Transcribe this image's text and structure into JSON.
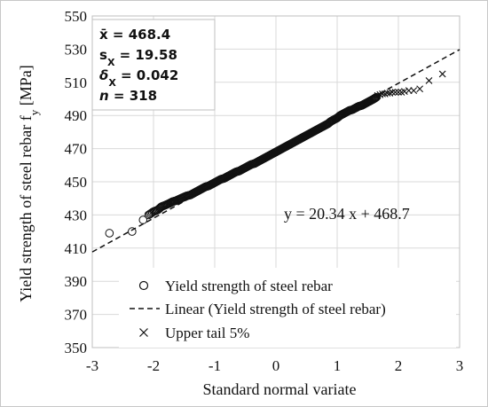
{
  "chart_data": {
    "type": "scatter",
    "xlabel": "Standard normal variate",
    "ylabel": "Yield strength of steel rebar f",
    "ylabel_sub": "y",
    "ylabel_unit": " [MPa]",
    "xlim": [
      -3,
      3
    ],
    "ylim": [
      350,
      550
    ],
    "xticks": [
      "-3",
      "-2",
      "-1",
      "0",
      "1",
      "2",
      "3"
    ],
    "yticks": [
      "350",
      "370",
      "390",
      "410",
      "430",
      "450",
      "470",
      "490",
      "510",
      "530",
      "550"
    ],
    "grid": true,
    "stats": [
      {
        "sym": "x̄",
        "sub": "",
        "eq": " = ",
        "val": "468.4"
      },
      {
        "sym": "s",
        "sub": "X",
        "eq": " = ",
        "val": "19.58"
      },
      {
        "sym": "δ",
        "sub": "X",
        "eq": " = ",
        "val": "0.042"
      },
      {
        "sym": "n",
        "sub": "",
        "eq": " = ",
        "val": "318"
      }
    ],
    "trendline": {
      "slope": 20.34,
      "intercept": 468.7,
      "label": "y = 20.34 x + 468.7"
    },
    "legend": [
      {
        "name": "Yield strength of steel rebar",
        "marker": "circle"
      },
      {
        "name": "Linear (Yield strength of steel rebar)",
        "marker": "dashed-line"
      },
      {
        "name": "Upper tail 5%",
        "marker": "x"
      }
    ],
    "series": [
      {
        "name": "Yield strength of steel rebar",
        "marker": "circle",
        "note": "318 points total; main body drawn as dense band following the fit",
        "x": [
          -2.72,
          -2.35,
          -2.17,
          -2.08,
          -2.0,
          -1.93,
          -1.87,
          -1.8,
          -1.74,
          -1.69,
          -1.64,
          -1.58,
          -1.52,
          -1.46,
          -1.4,
          -1.35,
          -1.3,
          -1.25,
          -1.2,
          -1.15,
          -1.1,
          -1.05,
          -1.0,
          -0.95,
          -0.9,
          -0.85,
          -0.8,
          -0.75,
          -0.7,
          -0.65,
          -0.6,
          -0.55,
          -0.5,
          -0.45,
          -0.4,
          -0.35,
          -0.3,
          -0.25,
          -0.2,
          -0.15,
          -0.1,
          -0.05,
          0.0,
          0.05,
          0.1,
          0.15,
          0.2,
          0.25,
          0.3,
          0.35,
          0.4,
          0.45,
          0.5,
          0.55,
          0.6,
          0.65,
          0.7,
          0.75,
          0.8,
          0.85,
          0.9,
          0.95,
          1.0,
          1.05,
          1.1,
          1.15,
          1.2,
          1.25,
          1.3,
          1.35,
          1.4,
          1.45,
          1.5,
          1.55,
          1.6,
          1.64
        ],
        "y": [
          419,
          420,
          427,
          430,
          432,
          433,
          435,
          436,
          437,
          438,
          438.5,
          439.5,
          440.5,
          441.5,
          442,
          443,
          444,
          445,
          446,
          447,
          447.5,
          448.5,
          449.5,
          450.5,
          451.5,
          452,
          453,
          454,
          455,
          456,
          456.5,
          457.5,
          458.5,
          459.5,
          460.5,
          461,
          462,
          463,
          464,
          465,
          466,
          467,
          468,
          469,
          470,
          471,
          472,
          473,
          474,
          475,
          476,
          477,
          478,
          479,
          480,
          481,
          482,
          483,
          484,
          485,
          486.5,
          487.5,
          488.5,
          490,
          491,
          492,
          493,
          493.5,
          494.5,
          495.5,
          496,
          497,
          498,
          499,
          500,
          501
        ]
      },
      {
        "name": "Upper tail 5%",
        "marker": "x",
        "x": [
          1.66,
          1.7,
          1.74,
          1.78,
          1.82,
          1.86,
          1.9,
          1.95,
          2.0,
          2.05,
          2.1,
          2.17,
          2.25,
          2.35,
          2.5,
          2.72
        ],
        "y": [
          502,
          502.5,
          503,
          503,
          503.5,
          503.5,
          504,
          504,
          504,
          504,
          504.5,
          505,
          505,
          506,
          511,
          515
        ]
      }
    ]
  }
}
